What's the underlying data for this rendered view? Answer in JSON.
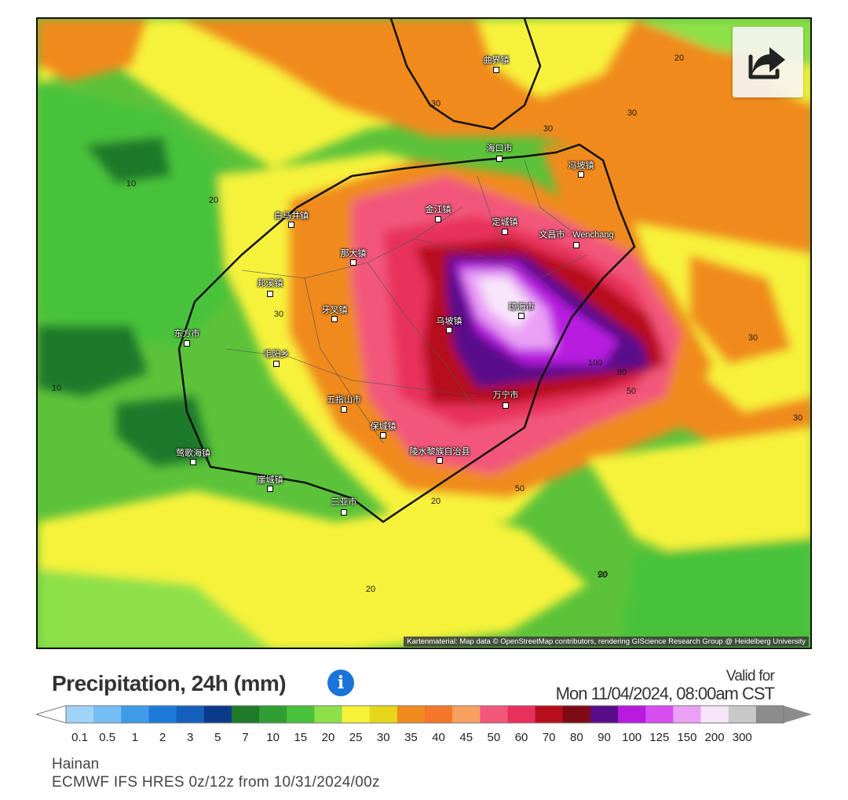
{
  "map": {
    "places": [
      {
        "name": "曲界镇"
      },
      {
        "name": "海口市"
      },
      {
        "name": "冯坡镇"
      },
      {
        "name": "金江镇"
      },
      {
        "name": "定城镇"
      },
      {
        "name": "白马井镇"
      },
      {
        "name": "文昌市 - Wenchang"
      },
      {
        "name": "那大镇"
      },
      {
        "name": "邦溪镇"
      },
      {
        "name": "牙叉镇"
      },
      {
        "name": "琼海市"
      },
      {
        "name": "乌坡镇"
      },
      {
        "name": "东方市"
      },
      {
        "name": "毛阳乡"
      },
      {
        "name": "万宁市"
      },
      {
        "name": "五指山市"
      },
      {
        "name": "保城镇"
      },
      {
        "name": "莺歌海镇"
      },
      {
        "name": "陵水黎族自治县"
      },
      {
        "name": "崖城镇"
      },
      {
        "name": "三亚市"
      }
    ],
    "contour_labels": [
      "20",
      "30",
      "30",
      "30",
      "10",
      "20",
      "30",
      "10",
      "100",
      "50",
      "30",
      "50",
      "20",
      "50",
      "20",
      "20",
      "30",
      "80"
    ],
    "attribution": "Kartenmaterial: Map data © OpenStreetMap contributors, rendering GIScience Research Group @ Heidelberg University",
    "share_icon": "share-arrow-icon"
  },
  "legend": {
    "title": "Precipitation, 24h (mm)",
    "info_icon": "info-icon",
    "valid_for_label": "Valid for",
    "valid_date": "Mon 11/04/2024, 08:00am CST",
    "ticks": [
      "0.1",
      "0.5",
      "1",
      "2",
      "3",
      "5",
      "7",
      "10",
      "15",
      "20",
      "25",
      "30",
      "35",
      "40",
      "45",
      "50",
      "60",
      "70",
      "80",
      "90",
      "100",
      "125",
      "150",
      "200",
      "300"
    ],
    "colors": [
      "#9fd3f8",
      "#74bdf5",
      "#3f9be8",
      "#1e7ad9",
      "#1560bd",
      "#0b3a8a",
      "#1f7a2a",
      "#2f9e33",
      "#48c23a",
      "#8ee04a",
      "#f6f23a",
      "#e8d61a",
      "#f08a1e",
      "#f4762a",
      "#f8a060",
      "#f2577a",
      "#e8305c",
      "#b80e1c",
      "#7e0a14",
      "#5a0d8a",
      "#b81ae0",
      "#d74ef0",
      "#eaa0f5",
      "#f7e6fa",
      "#c8c8c8",
      "#8c8c8c"
    ]
  },
  "footer": {
    "region": "Hainan",
    "model": "ECMWF IFS HRES 0z/12z from 10/31/2024/00z"
  }
}
